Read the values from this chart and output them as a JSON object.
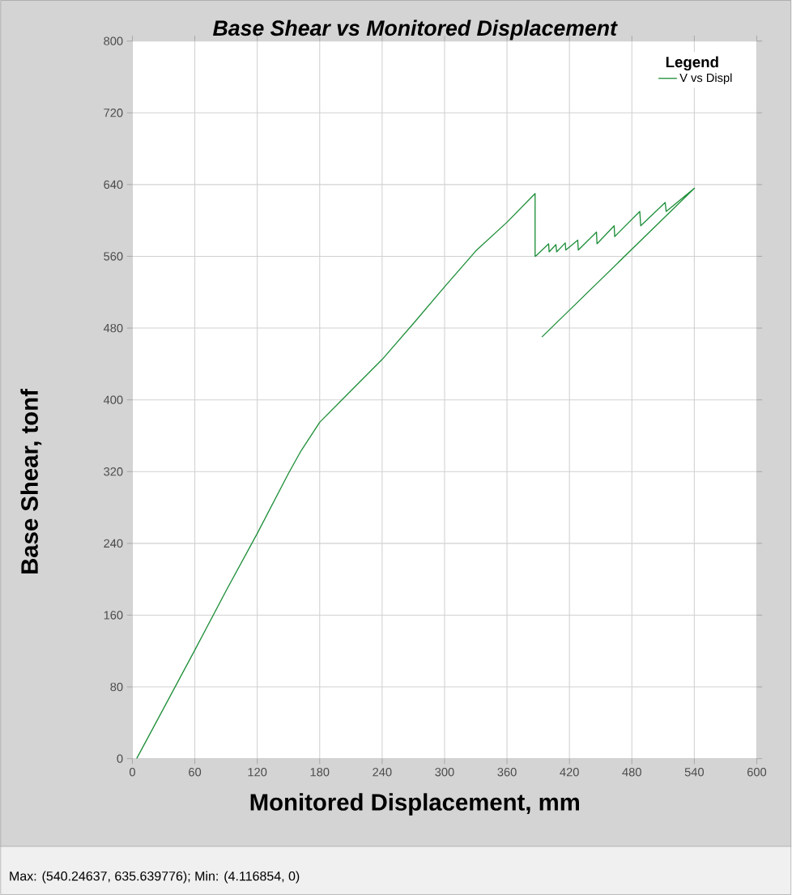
{
  "chart_data": {
    "type": "line",
    "title": "Base Shear vs Monitored Displacement",
    "xlabel": "Monitored Displacement, mm",
    "ylabel": "Base Shear, tonf",
    "legend_title": "Legend",
    "legend": "top right",
    "grid": true,
    "xlim": [
      0,
      600
    ],
    "ylim": [
      0,
      800
    ],
    "xticks": [
      0,
      60,
      120,
      180,
      240,
      300,
      360,
      420,
      480,
      540,
      600
    ],
    "yticks": [
      0,
      80,
      160,
      240,
      320,
      400,
      480,
      560,
      640,
      720,
      800
    ],
    "series": [
      {
        "name": "V vs Displ",
        "color": "#1f8f3a",
        "x": [
          4.1,
          30,
          60,
          90,
          120,
          150,
          162,
          180,
          210,
          240,
          270,
          300,
          330,
          360,
          387,
          387,
          388.4,
          400,
          400.5,
          407,
          407.7,
          416,
          416.5,
          428,
          428.5,
          446,
          446.5,
          463,
          463.5,
          487.6,
          488.5,
          512,
          513,
          540.2,
          393.5
        ],
        "values": [
          0,
          56,
          121,
          187,
          251,
          318,
          343,
          375,
          410,
          445,
          485,
          526,
          566,
          598,
          630,
          560,
          561,
          574,
          565,
          573,
          565,
          575,
          567,
          578,
          567,
          587,
          574,
          594,
          582,
          610,
          594,
          620,
          610,
          636,
          470
        ]
      }
    ],
    "annotations": [
      "Max: (540.24637, 635.639776);   Min: (4.116854, 0)"
    ]
  }
}
